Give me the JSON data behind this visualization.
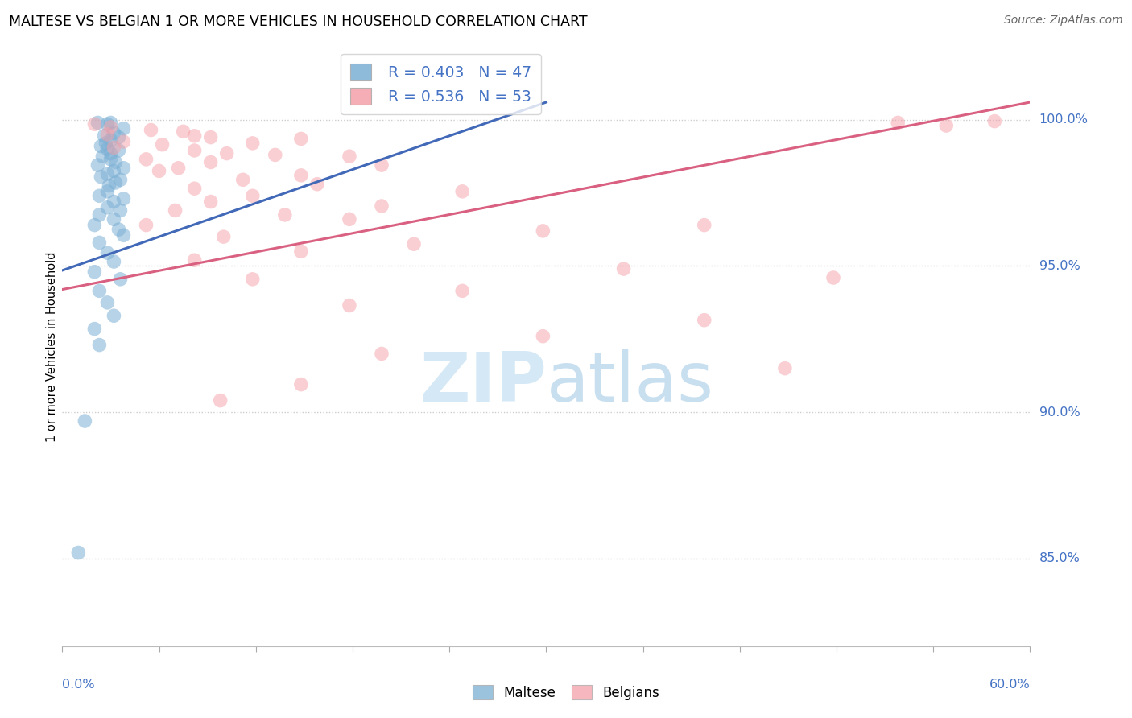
{
  "title": "MALTESE VS BELGIAN 1 OR MORE VEHICLES IN HOUSEHOLD CORRELATION CHART",
  "source": "Source: ZipAtlas.com",
  "ylabel": "1 or more Vehicles in Household",
  "xlim": [
    0.0,
    0.6
  ],
  "ylim": [
    0.82,
    1.025
  ],
  "ytick_values": [
    0.85,
    0.9,
    0.95,
    1.0
  ],
  "ytick_labels": [
    "85.0%",
    "90.0%",
    "95.0%",
    "100.0%"
  ],
  "x_left_label": "0.0%",
  "x_right_label": "60.0%",
  "blue_r": "R = 0.403",
  "blue_n": "N = 47",
  "pink_r": "R = 0.536",
  "pink_n": "N = 53",
  "legend_blue": "Maltese",
  "legend_pink": "Belgians",
  "blue_dot_color": "#7BAFD4",
  "pink_dot_color": "#F4A0A8",
  "blue_line_color": "#4169B8",
  "pink_line_color": "#D96080",
  "accent_color": "#4472C4",
  "watermark_color": "#D5E8F5",
  "blue_line_x": [
    0.0,
    0.3
  ],
  "blue_line_y": [
    0.9485,
    1.006
  ],
  "pink_line_x": [
    0.0,
    0.6
  ],
  "pink_line_y": [
    0.942,
    1.006
  ],
  "blue_x": [
    0.022,
    0.03,
    0.028,
    0.038,
    0.032,
    0.026,
    0.035,
    0.03,
    0.027,
    0.024,
    0.028,
    0.035,
    0.03,
    0.025,
    0.03,
    0.033,
    0.022,
    0.038,
    0.032,
    0.028,
    0.024,
    0.036,
    0.033,
    0.029,
    0.028,
    0.023,
    0.038,
    0.032,
    0.028,
    0.036,
    0.023,
    0.032,
    0.02,
    0.035,
    0.038,
    0.023,
    0.028,
    0.032,
    0.02,
    0.036,
    0.023,
    0.028,
    0.032,
    0.02,
    0.023,
    0.014,
    0.01
  ],
  "blue_y": [
    0.999,
    0.999,
    0.9985,
    0.997,
    0.9955,
    0.9945,
    0.994,
    0.993,
    0.992,
    0.991,
    0.99,
    0.9895,
    0.9885,
    0.9875,
    0.9865,
    0.9855,
    0.9845,
    0.9835,
    0.9825,
    0.9815,
    0.9805,
    0.9795,
    0.9785,
    0.9775,
    0.9755,
    0.974,
    0.973,
    0.972,
    0.97,
    0.969,
    0.9675,
    0.966,
    0.964,
    0.9625,
    0.9605,
    0.958,
    0.9545,
    0.9515,
    0.948,
    0.9455,
    0.9415,
    0.9375,
    0.933,
    0.9285,
    0.923,
    0.897,
    0.852
  ],
  "pink_x": [
    0.02,
    0.03,
    0.055,
    0.075,
    0.028,
    0.082,
    0.092,
    0.148,
    0.038,
    0.118,
    0.062,
    0.032,
    0.082,
    0.102,
    0.132,
    0.178,
    0.052,
    0.092,
    0.198,
    0.072,
    0.06,
    0.148,
    0.112,
    0.158,
    0.082,
    0.248,
    0.118,
    0.092,
    0.198,
    0.07,
    0.138,
    0.178,
    0.052,
    0.298,
    0.1,
    0.218,
    0.148,
    0.082,
    0.348,
    0.118,
    0.248,
    0.178,
    0.398,
    0.298,
    0.198,
    0.448,
    0.148,
    0.098,
    0.548,
    0.518,
    0.578,
    0.478,
    0.398
  ],
  "pink_y": [
    0.9985,
    0.9975,
    0.9965,
    0.996,
    0.995,
    0.9945,
    0.994,
    0.9935,
    0.9925,
    0.992,
    0.9915,
    0.9905,
    0.9895,
    0.9885,
    0.988,
    0.9875,
    0.9865,
    0.9855,
    0.9845,
    0.9835,
    0.9825,
    0.981,
    0.9795,
    0.978,
    0.9765,
    0.9755,
    0.974,
    0.972,
    0.9705,
    0.969,
    0.9675,
    0.966,
    0.964,
    0.962,
    0.96,
    0.9575,
    0.955,
    0.952,
    0.949,
    0.9455,
    0.9415,
    0.9365,
    0.9315,
    0.926,
    0.92,
    0.915,
    0.9095,
    0.904,
    0.998,
    0.999,
    0.9995,
    0.946,
    0.964
  ]
}
